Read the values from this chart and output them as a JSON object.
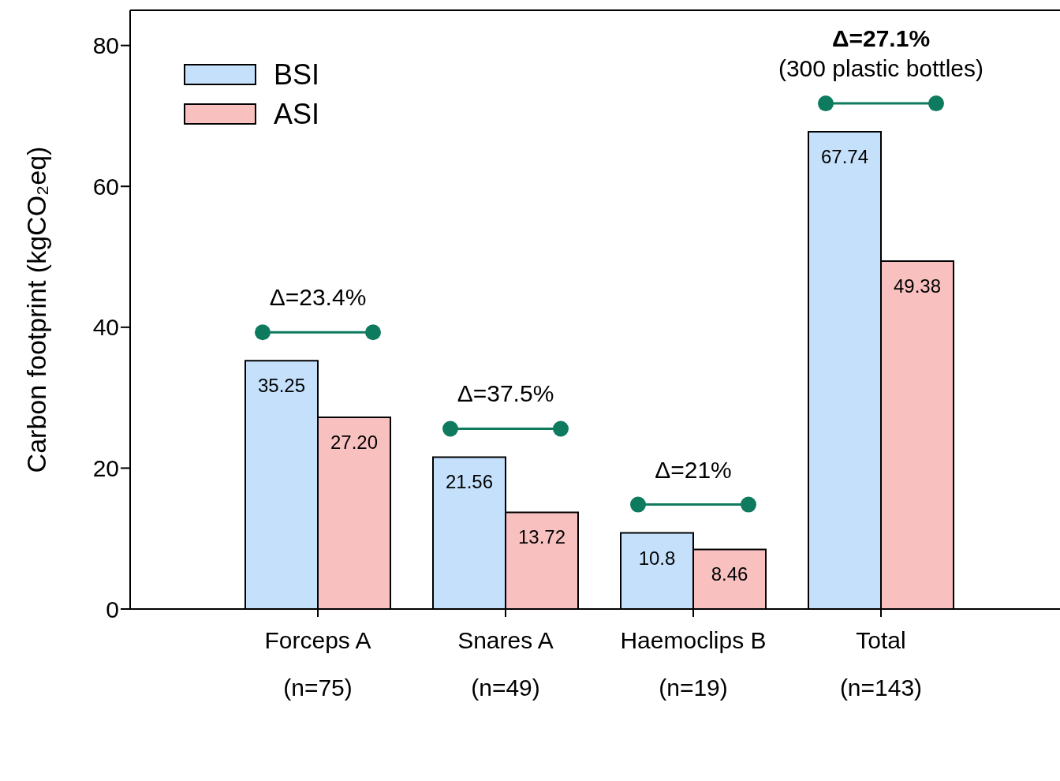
{
  "chart_data": {
    "type": "bar",
    "ylabel": "Carbon footprint (kgCO₂eq)",
    "categories": [
      "Forceps A\n(n=75)",
      "Snares A\n(n=49)",
      "Haemoclips B\n(n=19)",
      "Total\n(n=143)"
    ],
    "series": [
      {
        "name": "BSI",
        "color": "#c4e0fb",
        "values": [
          35.25,
          21.56,
          10.8,
          67.74
        ],
        "value_labels": [
          "35.25",
          "21.56",
          "10.8",
          "67.74"
        ]
      },
      {
        "name": "ASI",
        "color": "#f9c0c0",
        "values": [
          27.2,
          13.72,
          8.46,
          49.38
        ],
        "value_labels": [
          "27.20",
          "13.72",
          "8.46",
          "49.38"
        ]
      }
    ],
    "ylim": [
      0,
      85
    ],
    "yticks": [
      0,
      20,
      40,
      60,
      80
    ],
    "legend": "top left",
    "annotations": [
      "Δ=23.4%",
      "Δ=37.5%",
      "Δ=21%",
      "Δ=27.1%\n(300 plastic bottles)"
    ]
  }
}
